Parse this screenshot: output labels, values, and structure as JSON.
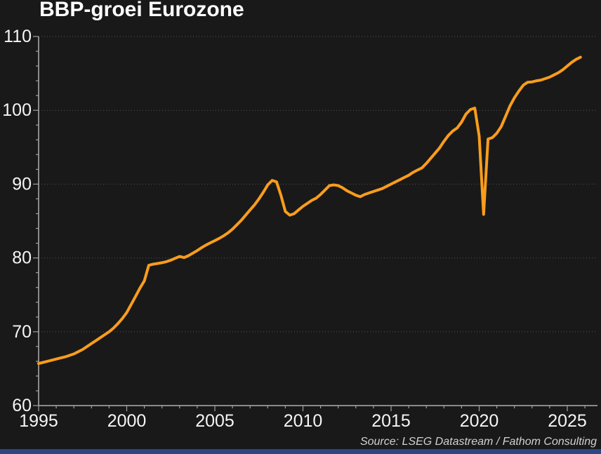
{
  "title": "BBP-groei Eurozone",
  "source": "Source: LSEG Datastream / Fathom Consulting",
  "colors": {
    "background": "#191919",
    "line": "#F99D1C",
    "axis": "#B0B0B0",
    "grid": "#555555",
    "tick_label": "#F5F5F5",
    "title_text": "#FFFFFF",
    "source_text": "#D2D2D2",
    "bottom_bar": "#2C4782"
  },
  "chart_data": {
    "type": "line",
    "title": "BBP-groei Eurozone",
    "xlabel": "",
    "ylabel": "",
    "xlim": [
      1995,
      2026.2
    ],
    "ylim": [
      60,
      110
    ],
    "x_ticks": [
      1995,
      2000,
      2005,
      2010,
      2015,
      2020,
      2025
    ],
    "y_ticks": [
      60,
      70,
      80,
      90,
      100,
      110
    ],
    "x_minor_step": 1,
    "y_minor_step": 2,
    "grid": "horizontal-dotted",
    "legend": "none",
    "line_color": "#F99D1C",
    "x": [
      1995.0,
      1995.25,
      1995.5,
      1995.75,
      1996.0,
      1996.25,
      1996.5,
      1996.75,
      1997.0,
      1997.25,
      1997.5,
      1997.75,
      1998.0,
      1998.25,
      1998.5,
      1998.75,
      1999.0,
      1999.25,
      1999.5,
      1999.75,
      2000.0,
      2000.25,
      2000.5,
      2000.75,
      2001.0,
      2001.25,
      2001.5,
      2001.75,
      2002.0,
      2002.25,
      2002.5,
      2002.75,
      2003.0,
      2003.25,
      2003.5,
      2003.75,
      2004.0,
      2004.25,
      2004.5,
      2004.75,
      2005.0,
      2005.25,
      2005.5,
      2005.75,
      2006.0,
      2006.25,
      2006.5,
      2006.75,
      2007.0,
      2007.25,
      2007.5,
      2007.75,
      2008.0,
      2008.25,
      2008.5,
      2008.75,
      2009.0,
      2009.25,
      2009.5,
      2009.75,
      2010.0,
      2010.25,
      2010.5,
      2010.75,
      2011.0,
      2011.25,
      2011.5,
      2011.75,
      2012.0,
      2012.25,
      2012.5,
      2012.75,
      2013.0,
      2013.25,
      2013.5,
      2013.75,
      2014.0,
      2014.25,
      2014.5,
      2014.75,
      2015.0,
      2015.25,
      2015.5,
      2015.75,
      2016.0,
      2016.25,
      2016.5,
      2016.75,
      2017.0,
      2017.25,
      2017.5,
      2017.75,
      2018.0,
      2018.25,
      2018.5,
      2018.75,
      2019.0,
      2019.25,
      2019.5,
      2019.75,
      2020.0,
      2020.25,
      2020.5,
      2020.75,
      2021.0,
      2021.25,
      2021.5,
      2021.75,
      2022.0,
      2022.25,
      2022.5,
      2022.75,
      2023.0,
      2023.25,
      2023.5,
      2023.75,
      2024.0,
      2024.25,
      2024.5,
      2024.75,
      2025.0,
      2025.25,
      2025.5,
      2025.75
    ],
    "values": [
      65.7,
      65.85,
      66.0,
      66.15,
      66.3,
      66.45,
      66.6,
      66.8,
      67.0,
      67.3,
      67.6,
      68.0,
      68.4,
      68.8,
      69.2,
      69.6,
      70.0,
      70.5,
      71.1,
      71.8,
      72.6,
      73.7,
      74.8,
      75.9,
      76.9,
      79.0,
      79.15,
      79.25,
      79.35,
      79.5,
      79.7,
      79.95,
      80.2,
      80.05,
      80.3,
      80.65,
      81.0,
      81.4,
      81.75,
      82.05,
      82.35,
      82.65,
      83.0,
      83.4,
      83.9,
      84.5,
      85.1,
      85.8,
      86.5,
      87.2,
      88.0,
      88.9,
      89.9,
      90.5,
      90.3,
      88.5,
      86.3,
      85.8,
      86.0,
      86.5,
      87.0,
      87.4,
      87.8,
      88.1,
      88.6,
      89.2,
      89.8,
      89.9,
      89.8,
      89.5,
      89.1,
      88.8,
      88.5,
      88.3,
      88.6,
      88.8,
      89.0,
      89.2,
      89.4,
      89.7,
      90.0,
      90.3,
      90.6,
      90.9,
      91.2,
      91.6,
      91.9,
      92.2,
      92.8,
      93.5,
      94.2,
      94.9,
      95.8,
      96.6,
      97.2,
      97.6,
      98.4,
      99.5,
      100.1,
      100.3,
      96.5,
      85.9,
      96.1,
      96.3,
      96.9,
      97.8,
      99.2,
      100.6,
      101.7,
      102.6,
      103.4,
      103.8,
      103.85,
      104.0,
      104.1,
      104.3,
      104.5,
      104.8,
      105.1,
      105.5,
      106.0,
      106.5,
      106.9,
      107.2
    ]
  }
}
